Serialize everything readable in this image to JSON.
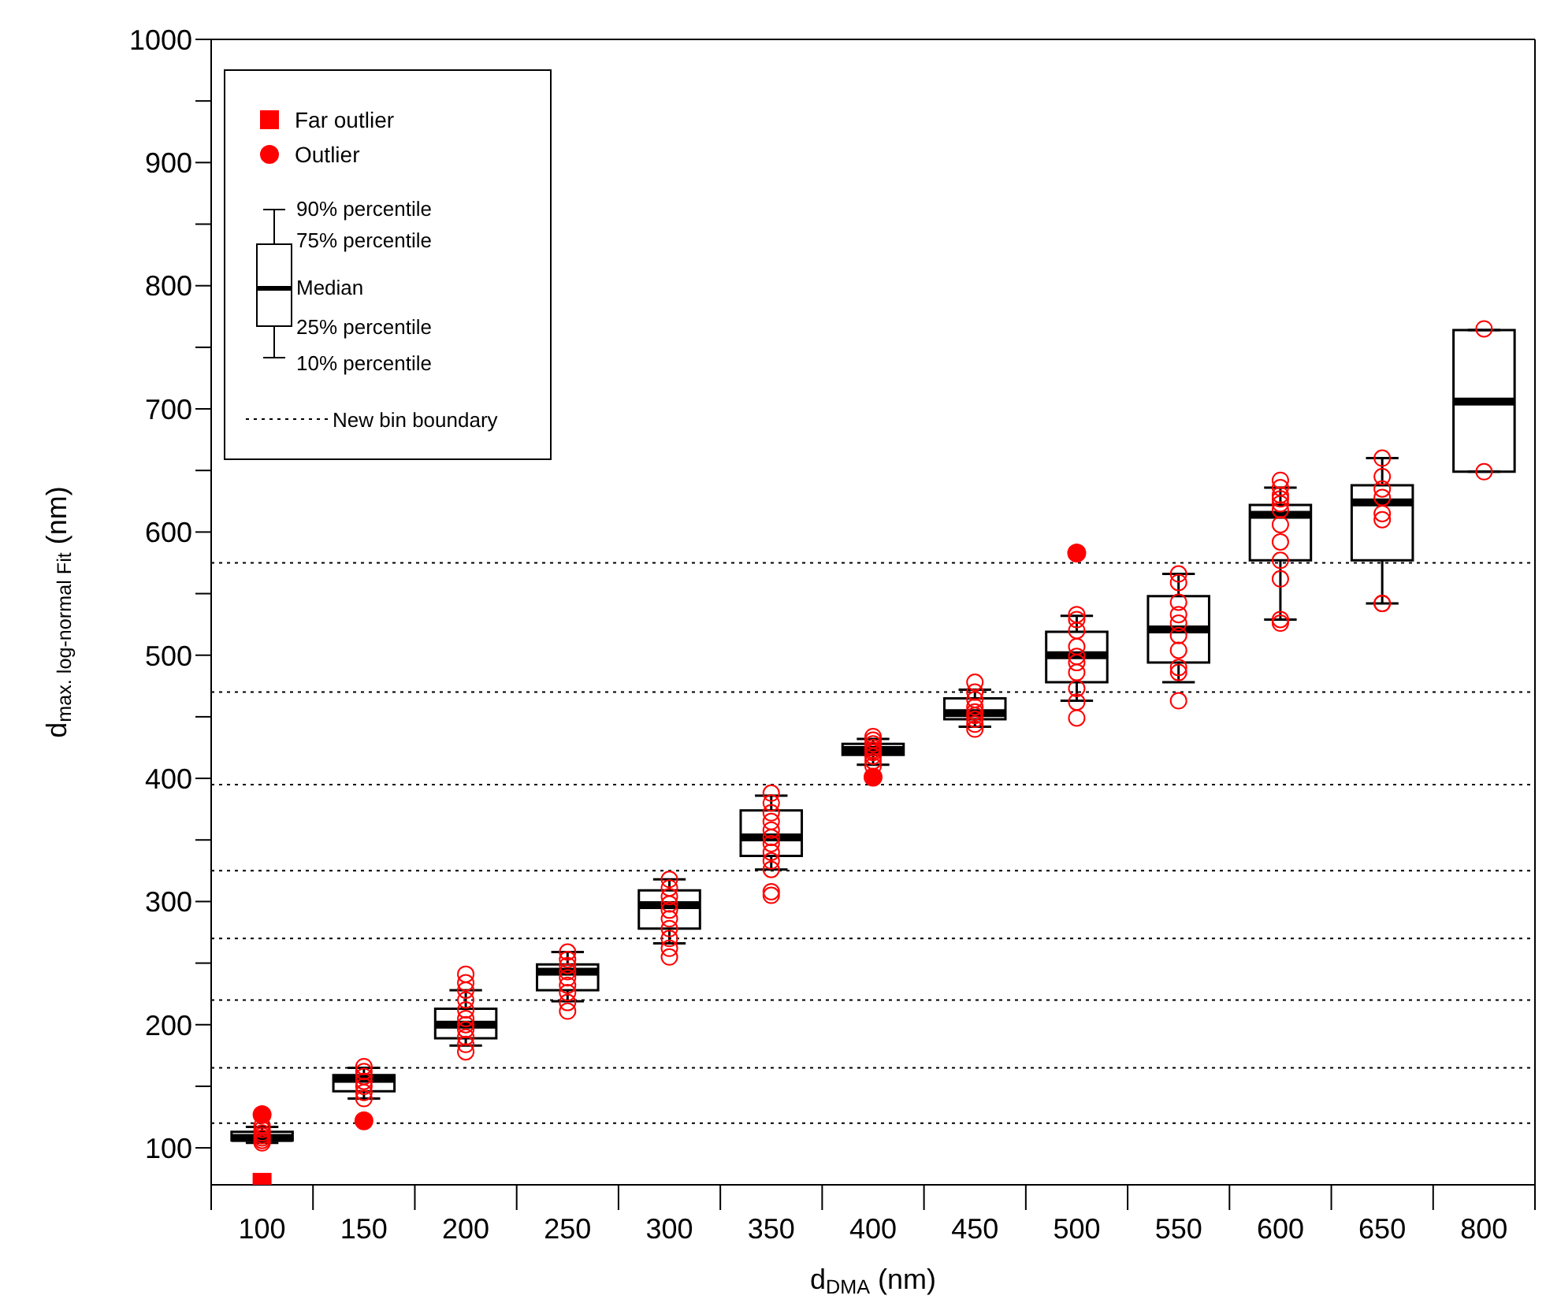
{
  "chart_data": {
    "type": "box",
    "xlabel": "d$_{DMA}$ (nm)",
    "ylabel": "d$_{max. log-normal Fit}$  (nm)",
    "categories": [
      "100",
      "150",
      "200",
      "250",
      "300",
      "350",
      "400",
      "450",
      "500",
      "550",
      "600",
      "650",
      "800"
    ],
    "boxes": [
      {
        "low": 104,
        "q1": 106,
        "median": 108,
        "q3": 113,
        "high": 117
      },
      {
        "low": 140,
        "q1": 146,
        "median": 156,
        "q3": 159,
        "high": 165
      },
      {
        "low": 183,
        "q1": 189,
        "median": 200,
        "q3": 213,
        "high": 228
      },
      {
        "low": 219,
        "q1": 228,
        "median": 243,
        "q3": 249,
        "high": 259
      },
      {
        "low": 266,
        "q1": 278,
        "median": 297,
        "q3": 309,
        "high": 318
      },
      {
        "low": 326,
        "q1": 337,
        "median": 352,
        "q3": 374,
        "high": 386
      },
      {
        "low": 411,
        "q1": 419,
        "median": 423,
        "q3": 428,
        "high": 432
      },
      {
        "low": 442,
        "q1": 448,
        "median": 453,
        "q3": 465,
        "high": 472
      },
      {
        "low": 463,
        "q1": 478,
        "median": 500,
        "q3": 519,
        "high": 532
      },
      {
        "low": 478,
        "q1": 494,
        "median": 521,
        "q3": 548,
        "high": 566
      },
      {
        "low": 529,
        "q1": 577,
        "median": 614,
        "q3": 622,
        "high": 636
      },
      {
        "low": 542,
        "q1": 577,
        "median": 624,
        "q3": 638,
        "high": 660
      },
      {
        "low": 649,
        "q1": 649,
        "median": 706,
        "q3": 764,
        "high": 764
      }
    ],
    "series": [
      {
        "type": "scatter",
        "color": "#ff0000",
        "marker": "circle",
        "x": [
          "100",
          "100",
          "100",
          "100",
          "100",
          "100",
          "100",
          "150",
          "150",
          "150",
          "150",
          "150",
          "150",
          "150",
          "200",
          "200",
          "200",
          "200",
          "200",
          "200",
          "200",
          "200",
          "200",
          "200",
          "200",
          "250",
          "250",
          "250",
          "250",
          "250",
          "250",
          "250",
          "250",
          "250",
          "300",
          "300",
          "300",
          "300",
          "300",
          "300",
          "300",
          "300",
          "300",
          "300",
          "350",
          "350",
          "350",
          "350",
          "350",
          "350",
          "350",
          "350",
          "350",
          "350",
          "350",
          "350",
          "400",
          "400",
          "400",
          "400",
          "400",
          "400",
          "400",
          "400",
          "400",
          "450",
          "450",
          "450",
          "450",
          "450",
          "450",
          "450",
          "450",
          "450",
          "500",
          "500",
          "500",
          "500",
          "500",
          "500",
          "500",
          "500",
          "500",
          "500",
          "550",
          "550",
          "550",
          "550",
          "550",
          "550",
          "550",
          "550",
          "550",
          "550",
          "600",
          "600",
          "600",
          "600",
          "600",
          "600",
          "600",
          "600",
          "600",
          "600",
          "600",
          "600",
          "650",
          "650",
          "650",
          "650",
          "650",
          "650",
          "650",
          "650",
          "800",
          "800"
        ],
        "values": [
          104,
          106,
          108,
          110,
          112,
          115,
          118,
          140,
          145,
          150,
          154,
          158,
          162,
          166,
          178,
          184,
          190,
          196,
          200,
          205,
          212,
          220,
          228,
          234,
          241,
          211,
          218,
          226,
          232,
          238,
          243,
          248,
          253,
          259,
          255,
          262,
          270,
          278,
          286,
          293,
          298,
          304,
          311,
          318,
          305,
          308,
          326,
          333,
          340,
          347,
          352,
          358,
          365,
          372,
          380,
          388,
          410,
          414,
          418,
          421,
          423,
          425,
          428,
          431,
          434,
          440,
          444,
          448,
          451,
          454,
          458,
          464,
          470,
          478,
          449,
          462,
          473,
          486,
          494,
          499,
          507,
          520,
          529,
          533,
          463,
          486,
          490,
          504,
          516,
          526,
          533,
          543,
          559,
          566,
          526,
          529,
          562,
          577,
          592,
          606,
          618,
          623,
          627,
          630,
          636,
          642,
          542,
          542,
          610,
          615,
          628,
          635,
          645,
          660,
          649,
          765
        ]
      },
      {
        "type": "scatter",
        "name": "Far outlier",
        "color": "#ff0000",
        "marker": "square",
        "x": [
          "100"
        ],
        "values": [
          72
        ]
      },
      {
        "type": "scatter",
        "name": "Outlier",
        "color": "#ff0000",
        "marker": "circle",
        "x": [
          "100",
          "150",
          "400",
          "500"
        ],
        "values": [
          127,
          122,
          401,
          583
        ]
      }
    ],
    "ylim": [
      70,
      1000
    ],
    "yticks": [
      100,
      {
        "value": 150,
        "label": null
      },
      200,
      {
        "value": 250,
        "label": null
      },
      300,
      {
        "value": 350,
        "label": null
      },
      400,
      {
        "value": 450,
        "label": null
      },
      500,
      {
        "value": 550,
        "label": null
      },
      600,
      {
        "value": 650,
        "label": null
      },
      700,
      {
        "value": 750,
        "label": null
      },
      800,
      {
        "value": 850,
        "label": null
      },
      900,
      {
        "value": 950,
        "label": null
      },
      1000
    ],
    "ref_lines": [
      {
        "axis": "y",
        "value": 120,
        "line_style": "dotted"
      },
      {
        "axis": "y",
        "value": 165,
        "line_style": "dotted"
      },
      {
        "axis": "y",
        "value": 220,
        "line_style": "dotted"
      },
      {
        "axis": "y",
        "value": 270,
        "line_style": "dotted"
      },
      {
        "axis": "y",
        "value": 325,
        "line_style": "dotted"
      },
      {
        "axis": "y",
        "value": 395,
        "line_style": "dotted"
      },
      {
        "axis": "y",
        "value": 470,
        "line_style": "dotted"
      },
      {
        "axis": "y",
        "value": 575,
        "line_style": "dotted"
      }
    ],
    "annotations": [
      "90% percentile",
      "75% percentile",
      "Median",
      "25% percentile",
      "10% percentile",
      "New bin boundary"
    ],
    "legend": "top left",
    "grid": false
  }
}
